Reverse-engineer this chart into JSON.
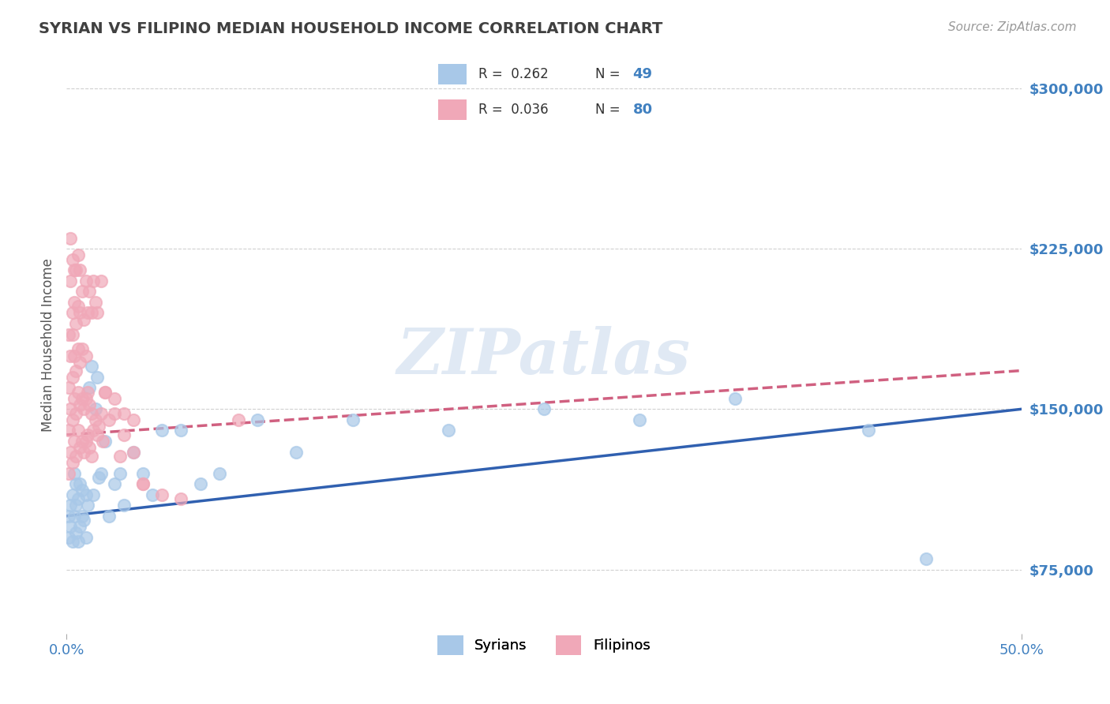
{
  "title": "SYRIAN VS FILIPINO MEDIAN HOUSEHOLD INCOME CORRELATION CHART",
  "source": "Source: ZipAtlas.com",
  "ylabel": "Median Household Income",
  "yticks": [
    75000,
    150000,
    225000,
    300000
  ],
  "ytick_labels": [
    "$75,000",
    "$150,000",
    "$225,000",
    "$300,000"
  ],
  "xlim": [
    0.0,
    0.5
  ],
  "ylim": [
    45000,
    315000
  ],
  "syrian_color": "#a8c8e8",
  "filipino_color": "#f0a8b8",
  "trendline_syrian_color": "#3060b0",
  "trendline_filipino_color": "#d06080",
  "background_color": "#ffffff",
  "grid_color": "#d0d0d0",
  "axis_label_color": "#4080c0",
  "title_color": "#404040",
  "syrian_R": 0.262,
  "syrian_N": 49,
  "filipino_R": 0.036,
  "filipino_N": 80,
  "syrian_trend_x0": 0.0,
  "syrian_trend_y0": 100000,
  "syrian_trend_x1": 0.5,
  "syrian_trend_y1": 150000,
  "filipino_trend_x0": 0.0,
  "filipino_trend_y0": 138000,
  "filipino_trend_x1": 0.5,
  "filipino_trend_y1": 168000,
  "syrian_x": [
    0.001,
    0.001,
    0.002,
    0.002,
    0.003,
    0.003,
    0.004,
    0.004,
    0.005,
    0.005,
    0.005,
    0.006,
    0.006,
    0.007,
    0.007,
    0.008,
    0.008,
    0.009,
    0.01,
    0.01,
    0.011,
    0.012,
    0.013,
    0.014,
    0.015,
    0.016,
    0.017,
    0.018,
    0.02,
    0.022,
    0.025,
    0.028,
    0.03,
    0.035,
    0.04,
    0.045,
    0.05,
    0.06,
    0.07,
    0.08,
    0.1,
    0.12,
    0.15,
    0.2,
    0.25,
    0.3,
    0.35,
    0.42,
    0.45
  ],
  "syrian_y": [
    90000,
    100000,
    105000,
    95000,
    88000,
    110000,
    100000,
    120000,
    92000,
    105000,
    115000,
    88000,
    108000,
    95000,
    115000,
    100000,
    112000,
    98000,
    90000,
    110000,
    105000,
    160000,
    170000,
    110000,
    150000,
    165000,
    118000,
    120000,
    135000,
    100000,
    115000,
    120000,
    105000,
    130000,
    120000,
    110000,
    140000,
    140000,
    115000,
    120000,
    145000,
    130000,
    145000,
    140000,
    150000,
    145000,
    155000,
    140000,
    80000
  ],
  "filipino_x": [
    0.001,
    0.001,
    0.001,
    0.002,
    0.002,
    0.002,
    0.003,
    0.003,
    0.003,
    0.003,
    0.004,
    0.004,
    0.004,
    0.005,
    0.005,
    0.005,
    0.006,
    0.006,
    0.006,
    0.007,
    0.007,
    0.007,
    0.008,
    0.008,
    0.008,
    0.009,
    0.009,
    0.01,
    0.01,
    0.01,
    0.011,
    0.011,
    0.012,
    0.012,
    0.013,
    0.013,
    0.014,
    0.015,
    0.016,
    0.017,
    0.018,
    0.019,
    0.02,
    0.022,
    0.025,
    0.028,
    0.03,
    0.035,
    0.04,
    0.05,
    0.001,
    0.002,
    0.002,
    0.003,
    0.003,
    0.004,
    0.004,
    0.005,
    0.005,
    0.006,
    0.006,
    0.007,
    0.007,
    0.008,
    0.009,
    0.01,
    0.011,
    0.012,
    0.013,
    0.014,
    0.015,
    0.016,
    0.018,
    0.02,
    0.025,
    0.03,
    0.035,
    0.04,
    0.06,
    0.09
  ],
  "filipino_y": [
    120000,
    140000,
    160000,
    130000,
    150000,
    175000,
    125000,
    145000,
    165000,
    185000,
    135000,
    155000,
    175000,
    128000,
    148000,
    168000,
    140000,
    158000,
    178000,
    132000,
    152000,
    172000,
    135000,
    155000,
    178000,
    130000,
    150000,
    135000,
    155000,
    175000,
    138000,
    158000,
    132000,
    152000,
    128000,
    148000,
    140000,
    145000,
    138000,
    142000,
    148000,
    135000,
    158000,
    145000,
    148000,
    128000,
    138000,
    145000,
    115000,
    110000,
    185000,
    210000,
    230000,
    195000,
    220000,
    200000,
    215000,
    190000,
    215000,
    198000,
    222000,
    195000,
    215000,
    205000,
    192000,
    210000,
    195000,
    205000,
    195000,
    210000,
    200000,
    195000,
    210000,
    158000,
    155000,
    148000,
    130000,
    115000,
    108000,
    145000
  ]
}
